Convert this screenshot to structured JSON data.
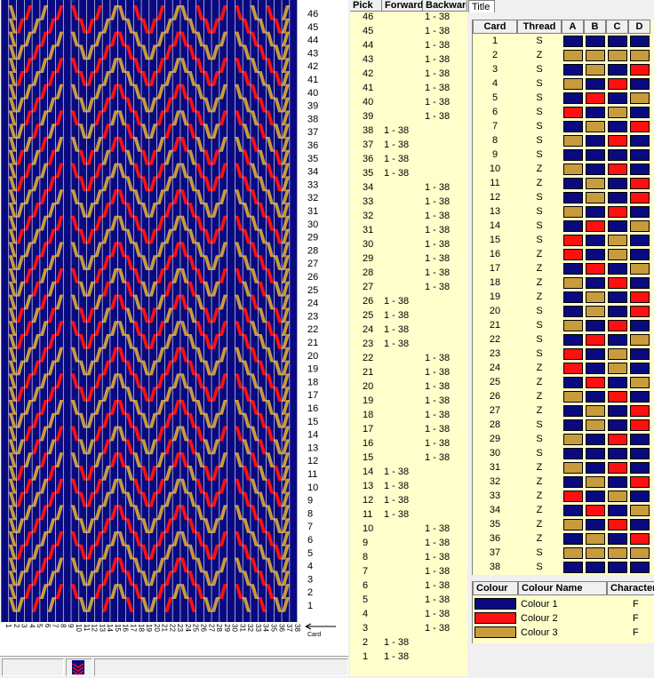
{
  "pattern": {
    "card_count": 38,
    "pick_count": 46,
    "card_axis_label": "Card",
    "colors": {
      "navy": "#0a0a80",
      "red": "#ff1010",
      "gold": "#c89b3c"
    }
  },
  "pick_table": {
    "headers": [
      "Pick",
      "Forward",
      "Backward"
    ],
    "rows": [
      {
        "pick": "46",
        "forward": "",
        "backward": "1 - 38"
      },
      {
        "pick": "45",
        "forward": "",
        "backward": "1 - 38"
      },
      {
        "pick": "44",
        "forward": "",
        "backward": "1 - 38"
      },
      {
        "pick": "43",
        "forward": "",
        "backward": "1 - 38"
      },
      {
        "pick": "42",
        "forward": "",
        "backward": "1 - 38"
      },
      {
        "pick": "41",
        "forward": "",
        "backward": "1 - 38"
      },
      {
        "pick": "40",
        "forward": "",
        "backward": "1 - 38"
      },
      {
        "pick": "39",
        "forward": "",
        "backward": "1 - 38"
      },
      {
        "pick": "38",
        "forward": "1 - 38",
        "backward": ""
      },
      {
        "pick": "37",
        "forward": "1 - 38",
        "backward": ""
      },
      {
        "pick": "36",
        "forward": "1 - 38",
        "backward": ""
      },
      {
        "pick": "35",
        "forward": "1 - 38",
        "backward": ""
      },
      {
        "pick": "34",
        "forward": "",
        "backward": "1 - 38"
      },
      {
        "pick": "33",
        "forward": "",
        "backward": "1 - 38"
      },
      {
        "pick": "32",
        "forward": "",
        "backward": "1 - 38"
      },
      {
        "pick": "31",
        "forward": "",
        "backward": "1 - 38"
      },
      {
        "pick": "30",
        "forward": "",
        "backward": "1 - 38"
      },
      {
        "pick": "29",
        "forward": "",
        "backward": "1 - 38"
      },
      {
        "pick": "28",
        "forward": "",
        "backward": "1 - 38"
      },
      {
        "pick": "27",
        "forward": "",
        "backward": "1 - 38"
      },
      {
        "pick": "26",
        "forward": "1 - 38",
        "backward": ""
      },
      {
        "pick": "25",
        "forward": "1 - 38",
        "backward": ""
      },
      {
        "pick": "24",
        "forward": "1 - 38",
        "backward": ""
      },
      {
        "pick": "23",
        "forward": "1 - 38",
        "backward": ""
      },
      {
        "pick": "22",
        "forward": "",
        "backward": "1 - 38"
      },
      {
        "pick": "21",
        "forward": "",
        "backward": "1 - 38"
      },
      {
        "pick": "20",
        "forward": "",
        "backward": "1 - 38"
      },
      {
        "pick": "19",
        "forward": "",
        "backward": "1 - 38"
      },
      {
        "pick": "18",
        "forward": "",
        "backward": "1 - 38"
      },
      {
        "pick": "17",
        "forward": "",
        "backward": "1 - 38"
      },
      {
        "pick": "16",
        "forward": "",
        "backward": "1 - 38"
      },
      {
        "pick": "15",
        "forward": "",
        "backward": "1 - 38"
      },
      {
        "pick": "14",
        "forward": "1 - 38",
        "backward": ""
      },
      {
        "pick": "13",
        "forward": "1 - 38",
        "backward": ""
      },
      {
        "pick": "12",
        "forward": "1 - 38",
        "backward": ""
      },
      {
        "pick": "11",
        "forward": "1 - 38",
        "backward": ""
      },
      {
        "pick": "10",
        "forward": "",
        "backward": "1 - 38"
      },
      {
        "pick": "9",
        "forward": "",
        "backward": "1 - 38"
      },
      {
        "pick": "8",
        "forward": "",
        "backward": "1 - 38"
      },
      {
        "pick": "7",
        "forward": "",
        "backward": "1 - 38"
      },
      {
        "pick": "6",
        "forward": "",
        "backward": "1 - 38"
      },
      {
        "pick": "5",
        "forward": "",
        "backward": "1 - 38"
      },
      {
        "pick": "4",
        "forward": "",
        "backward": "1 - 38"
      },
      {
        "pick": "3",
        "forward": "",
        "backward": "1 - 38"
      },
      {
        "pick": "2",
        "forward": "1 - 38",
        "backward": ""
      },
      {
        "pick": "1",
        "forward": "1 - 38",
        "backward": ""
      }
    ]
  },
  "title_tab": "Title",
  "card_table": {
    "headers": [
      "Card",
      "Thread",
      "A",
      "B",
      "C",
      "D"
    ],
    "rows": [
      {
        "card": "1",
        "thread": "S",
        "holes": [
          "navy",
          "navy",
          "navy",
          "navy"
        ]
      },
      {
        "card": "2",
        "thread": "Z",
        "holes": [
          "gold",
          "gold",
          "gold",
          "gold"
        ]
      },
      {
        "card": "3",
        "thread": "S",
        "holes": [
          "navy",
          "gold",
          "navy",
          "red"
        ]
      },
      {
        "card": "4",
        "thread": "S",
        "holes": [
          "gold",
          "navy",
          "red",
          "navy"
        ]
      },
      {
        "card": "5",
        "thread": "S",
        "holes": [
          "navy",
          "red",
          "navy",
          "gold"
        ]
      },
      {
        "card": "6",
        "thread": "S",
        "holes": [
          "red",
          "navy",
          "gold",
          "navy"
        ]
      },
      {
        "card": "7",
        "thread": "S",
        "holes": [
          "navy",
          "gold",
          "navy",
          "red"
        ]
      },
      {
        "card": "8",
        "thread": "S",
        "holes": [
          "gold",
          "navy",
          "red",
          "navy"
        ]
      },
      {
        "card": "9",
        "thread": "S",
        "holes": [
          "navy",
          "navy",
          "navy",
          "navy"
        ]
      },
      {
        "card": "10",
        "thread": "Z",
        "holes": [
          "gold",
          "navy",
          "red",
          "navy"
        ]
      },
      {
        "card": "11",
        "thread": "Z",
        "holes": [
          "navy",
          "gold",
          "navy",
          "red"
        ]
      },
      {
        "card": "12",
        "thread": "S",
        "holes": [
          "navy",
          "gold",
          "navy",
          "red"
        ]
      },
      {
        "card": "13",
        "thread": "S",
        "holes": [
          "gold",
          "navy",
          "red",
          "navy"
        ]
      },
      {
        "card": "14",
        "thread": "S",
        "holes": [
          "navy",
          "red",
          "navy",
          "gold"
        ]
      },
      {
        "card": "15",
        "thread": "S",
        "holes": [
          "red",
          "navy",
          "gold",
          "navy"
        ]
      },
      {
        "card": "16",
        "thread": "Z",
        "holes": [
          "red",
          "navy",
          "gold",
          "navy"
        ]
      },
      {
        "card": "17",
        "thread": "Z",
        "holes": [
          "navy",
          "red",
          "navy",
          "gold"
        ]
      },
      {
        "card": "18",
        "thread": "Z",
        "holes": [
          "gold",
          "navy",
          "red",
          "navy"
        ]
      },
      {
        "card": "19",
        "thread": "Z",
        "holes": [
          "navy",
          "gold",
          "navy",
          "red"
        ]
      },
      {
        "card": "20",
        "thread": "S",
        "holes": [
          "navy",
          "gold",
          "navy",
          "red"
        ]
      },
      {
        "card": "21",
        "thread": "S",
        "holes": [
          "gold",
          "navy",
          "red",
          "navy"
        ]
      },
      {
        "card": "22",
        "thread": "S",
        "holes": [
          "navy",
          "red",
          "navy",
          "gold"
        ]
      },
      {
        "card": "23",
        "thread": "S",
        "holes": [
          "red",
          "navy",
          "gold",
          "navy"
        ]
      },
      {
        "card": "24",
        "thread": "Z",
        "holes": [
          "red",
          "navy",
          "gold",
          "navy"
        ]
      },
      {
        "card": "25",
        "thread": "Z",
        "holes": [
          "navy",
          "red",
          "navy",
          "gold"
        ]
      },
      {
        "card": "26",
        "thread": "Z",
        "holes": [
          "gold",
          "navy",
          "red",
          "navy"
        ]
      },
      {
        "card": "27",
        "thread": "Z",
        "holes": [
          "navy",
          "gold",
          "navy",
          "red"
        ]
      },
      {
        "card": "28",
        "thread": "S",
        "holes": [
          "navy",
          "gold",
          "navy",
          "red"
        ]
      },
      {
        "card": "29",
        "thread": "S",
        "holes": [
          "gold",
          "navy",
          "red",
          "navy"
        ]
      },
      {
        "card": "30",
        "thread": "S",
        "holes": [
          "navy",
          "navy",
          "navy",
          "navy"
        ]
      },
      {
        "card": "31",
        "thread": "Z",
        "holes": [
          "gold",
          "navy",
          "red",
          "navy"
        ]
      },
      {
        "card": "32",
        "thread": "Z",
        "holes": [
          "navy",
          "gold",
          "navy",
          "red"
        ]
      },
      {
        "card": "33",
        "thread": "Z",
        "holes": [
          "red",
          "navy",
          "gold",
          "navy"
        ]
      },
      {
        "card": "34",
        "thread": "Z",
        "holes": [
          "navy",
          "red",
          "navy",
          "gold"
        ]
      },
      {
        "card": "35",
        "thread": "Z",
        "holes": [
          "gold",
          "navy",
          "red",
          "navy"
        ]
      },
      {
        "card": "36",
        "thread": "Z",
        "holes": [
          "navy",
          "gold",
          "navy",
          "red"
        ]
      },
      {
        "card": "37",
        "thread": "S",
        "holes": [
          "gold",
          "gold",
          "gold",
          "gold"
        ]
      },
      {
        "card": "38",
        "thread": "S",
        "holes": [
          "navy",
          "navy",
          "navy",
          "navy"
        ]
      }
    ]
  },
  "colour_table": {
    "headers": [
      "Colour",
      "Colour Name",
      "Character"
    ],
    "rows": [
      {
        "swatch": "navy",
        "name": "Colour 1",
        "char": "F"
      },
      {
        "swatch": "red",
        "name": "Colour 2",
        "char": "F"
      },
      {
        "swatch": "gold",
        "name": "Colour 3",
        "char": "F"
      }
    ]
  }
}
